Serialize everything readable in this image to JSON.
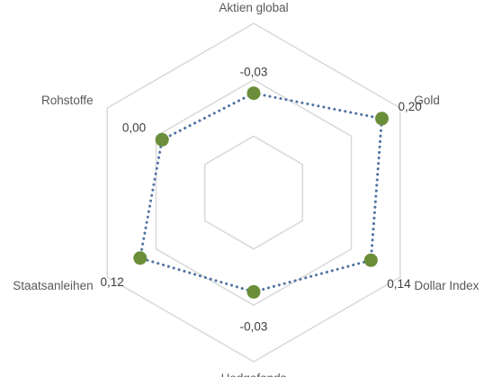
{
  "chart_data": {
    "type": "radar",
    "categories": [
      "Aktien global",
      "Gold",
      "Dollar Index",
      "Hedgefonds",
      "Staatsanleihen",
      "Rohstoffe"
    ],
    "series": [
      {
        "values": [
          -0.03,
          0.2,
          0.14,
          -0.03,
          0.12,
          0.0
        ]
      }
    ],
    "data_labels": [
      "-0,03",
      "0,20",
      "0,14",
      "-0,03",
      "0,12",
      "0,00"
    ],
    "rlim": [
      -0.5,
      0.3
    ],
    "gridlines": 3,
    "legend": "none",
    "colors": {
      "line": "#4e71a0",
      "marker": "#6b8e3a",
      "grid": "#d9d9d9"
    },
    "line_style": "dotted"
  }
}
